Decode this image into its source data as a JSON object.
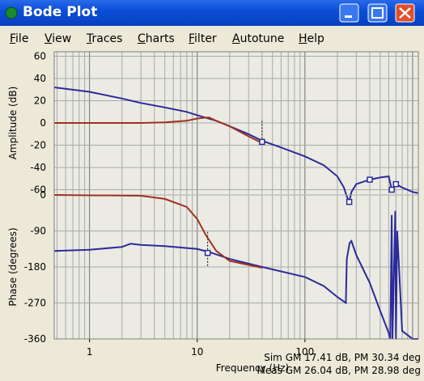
{
  "window": {
    "title": "Bode Plot"
  },
  "menu": [
    "File",
    "View",
    "Traces",
    "Charts",
    "Filter",
    "Autotune",
    "Help"
  ],
  "chart_data": [
    {
      "type": "line",
      "ylabel": "Amplitude (dB)",
      "xscale": "log",
      "xlim": [
        0.47,
        1130
      ],
      "ylim": [
        -64,
        64
      ],
      "yticks": [
        60,
        40,
        20,
        0,
        -20,
        -40,
        -60
      ],
      "grid": true,
      "xgrid": [
        0.5,
        0.6,
        0.7,
        0.8,
        0.9,
        1,
        2,
        3,
        4,
        5,
        6,
        7,
        8,
        9,
        10,
        20,
        30,
        40,
        50,
        60,
        70,
        80,
        90,
        100,
        200,
        300,
        400,
        500,
        600,
        700,
        800,
        900,
        1000
      ],
      "series": [
        {
          "color": "#2b2b9a",
          "x": [
            0.47,
            1,
            2,
            3,
            5,
            8,
            10,
            15,
            20,
            30,
            40,
            60,
            100,
            150,
            200,
            230,
            245,
            258,
            270,
            300,
            400,
            500,
            600,
            640,
            700,
            800,
            1000,
            1130
          ],
          "values": [
            32,
            28,
            22,
            18,
            14,
            10,
            7,
            2,
            -3,
            -10,
            -16,
            -22,
            -30,
            -38,
            -48,
            -58,
            -66,
            -71,
            -62,
            -55,
            -51,
            -49,
            -48,
            -60,
            -55,
            -58,
            -62,
            -63
          ]
        },
        {
          "color": "#a03020",
          "x": [
            0.47,
            3,
            5,
            8,
            10,
            12.8,
            15,
            20,
            30,
            40
          ],
          "values": [
            0,
            0,
            0.5,
            2,
            4,
            5,
            2,
            -3,
            -12,
            -18
          ]
        }
      ],
      "markers": {
        "color": "#2b2b9a",
        "x": [
          40,
          258,
          400,
          640,
          700
        ],
        "values": [
          -17,
          -71,
          -51,
          -60,
          -55
        ]
      }
    },
    {
      "type": "line",
      "xlabel": "Frequency (Hz)",
      "ylabel": "Phase (degrees)",
      "xscale": "log",
      "xlim": [
        0.47,
        1130
      ],
      "ylim": [
        -360,
        0
      ],
      "yticks": [
        0,
        -90,
        -180,
        -270,
        -360
      ],
      "xticks": [
        1,
        10,
        100
      ],
      "grid": true,
      "xgrid": [
        0.5,
        0.6,
        0.7,
        0.8,
        0.9,
        1,
        2,
        3,
        4,
        5,
        6,
        7,
        8,
        9,
        10,
        20,
        30,
        40,
        50,
        60,
        70,
        80,
        90,
        100,
        200,
        300,
        400,
        500,
        600,
        700,
        800,
        900,
        1000
      ],
      "series": [
        {
          "color": "#2b2b9a",
          "x": [
            0.47,
            1,
            2,
            2.4,
            3,
            5,
            10,
            13,
            20,
            40,
            100,
            150,
            200,
            240,
            245,
            260,
            270,
            300,
            400,
            500,
            600,
            620,
            640,
            650,
            690,
            700,
            720,
            800,
            1000,
            1130
          ],
          "values": [
            -140,
            -137,
            -130,
            -122,
            -125,
            -128,
            -135,
            -143,
            -160,
            -180,
            -205,
            -228,
            -255,
            -270,
            -160,
            -120,
            -115,
            -150,
            -220,
            -290,
            -345,
            -360,
            -50,
            -360,
            -40,
            -360,
            -90,
            -340,
            -360,
            -360
          ]
        },
        {
          "color": "#a03020",
          "x": [
            0.47,
            3,
            5,
            8,
            10,
            12,
            15,
            20,
            30,
            40
          ],
          "values": [
            0,
            -2,
            -10,
            -30,
            -60,
            -100,
            -140,
            -165,
            -175,
            -182
          ]
        }
      ],
      "markers": {
        "color": "#2b2b9a",
        "x": [
          12.5
        ],
        "values": [
          -145
        ]
      }
    }
  ],
  "footer": [
    "Sim GM 17.41 dB, PM 30.34 deg",
    "Meas GM 26.04 dB, PM 28.98 deg"
  ]
}
